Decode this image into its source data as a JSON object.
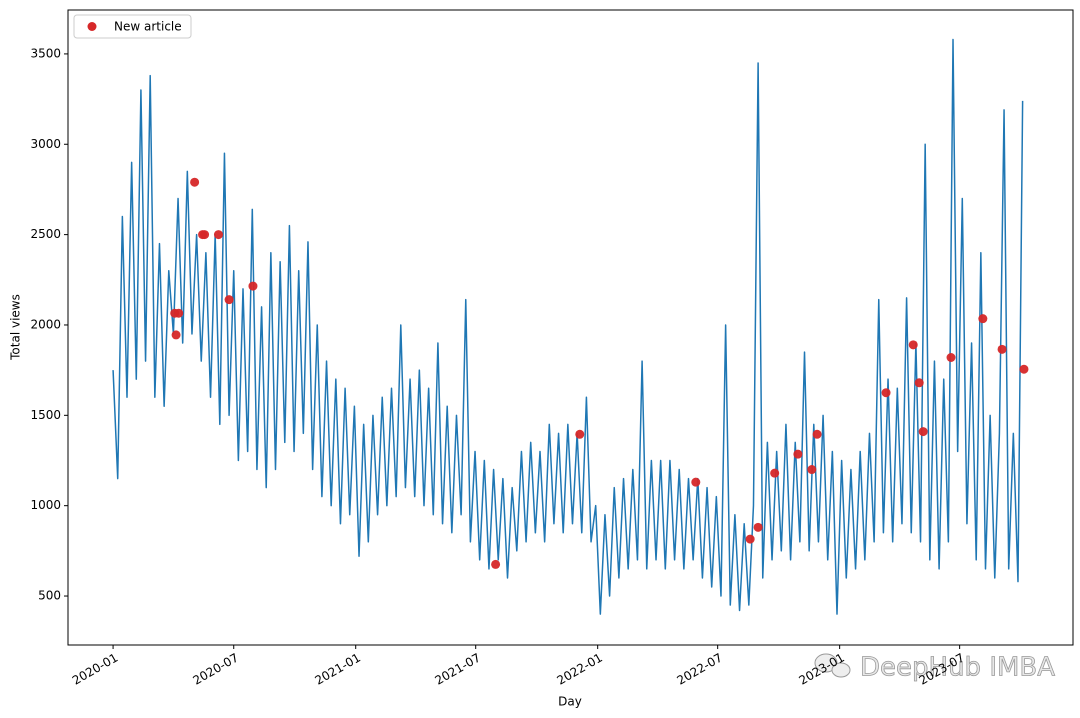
{
  "chart_data": {
    "type": "line",
    "xlabel": "Day",
    "ylabel": "Total views",
    "xlim": [
      "2019-10-25",
      "2023-12-19"
    ],
    "xticks": [
      "2020-01",
      "2020-07",
      "2021-01",
      "2021-07",
      "2022-01",
      "2022-07",
      "2023-01",
      "2023-07"
    ],
    "ylim": [
      229,
      3743
    ],
    "yticks": [
      500,
      1000,
      1500,
      2000,
      2500,
      3000,
      3500
    ],
    "legend": "upper left",
    "watermark": "DeepHub IMBA",
    "series": [
      {
        "type": "line",
        "color": "#1f77b4",
        "x": [
          "2020-01-01",
          "2020-01-08",
          "2020-01-15",
          "2020-01-22",
          "2020-01-29",
          "2020-02-05",
          "2020-02-12",
          "2020-02-19",
          "2020-02-26",
          "2020-03-04",
          "2020-03-11",
          "2020-03-18",
          "2020-03-25",
          "2020-04-01",
          "2020-04-08",
          "2020-04-15",
          "2020-04-22",
          "2020-04-29",
          "2020-05-06",
          "2020-05-13",
          "2020-05-20",
          "2020-05-27",
          "2020-06-03",
          "2020-06-10",
          "2020-06-17",
          "2020-06-24",
          "2020-07-01",
          "2020-07-08",
          "2020-07-15",
          "2020-07-22",
          "2020-07-29",
          "2020-08-05",
          "2020-08-12",
          "2020-08-19",
          "2020-08-26",
          "2020-09-02",
          "2020-09-09",
          "2020-09-16",
          "2020-09-23",
          "2020-09-30",
          "2020-10-07",
          "2020-10-14",
          "2020-10-21",
          "2020-10-28",
          "2020-11-04",
          "2020-11-11",
          "2020-11-18",
          "2020-11-25",
          "2020-12-02",
          "2020-12-09",
          "2020-12-16",
          "2020-12-23",
          "2020-12-30",
          "2021-01-06",
          "2021-01-13",
          "2021-01-20",
          "2021-01-27",
          "2021-02-03",
          "2021-02-10",
          "2021-02-17",
          "2021-02-24",
          "2021-03-03",
          "2021-03-10",
          "2021-03-17",
          "2021-03-24",
          "2021-03-31",
          "2021-04-07",
          "2021-04-14",
          "2021-04-21",
          "2021-04-28",
          "2021-05-05",
          "2021-05-12",
          "2021-05-19",
          "2021-05-26",
          "2021-06-02",
          "2021-06-09",
          "2021-06-16",
          "2021-06-23",
          "2021-06-30",
          "2021-07-07",
          "2021-07-14",
          "2021-07-21",
          "2021-07-28",
          "2021-08-04",
          "2021-08-11",
          "2021-08-18",
          "2021-08-25",
          "2021-09-01",
          "2021-09-08",
          "2021-09-15",
          "2021-09-22",
          "2021-09-29",
          "2021-10-06",
          "2021-10-13",
          "2021-10-20",
          "2021-10-27",
          "2021-11-03",
          "2021-11-10",
          "2021-11-17",
          "2021-11-24",
          "2021-12-01",
          "2021-12-08",
          "2021-12-15",
          "2021-12-22",
          "2021-12-29",
          "2022-01-05",
          "2022-01-12",
          "2022-01-19",
          "2022-01-26",
          "2022-02-02",
          "2022-02-09",
          "2022-02-16",
          "2022-02-23",
          "2022-03-02",
          "2022-03-09",
          "2022-03-16",
          "2022-03-23",
          "2022-03-30",
          "2022-04-06",
          "2022-04-13",
          "2022-04-20",
          "2022-04-27",
          "2022-05-04",
          "2022-05-11",
          "2022-05-18",
          "2022-05-25",
          "2022-06-01",
          "2022-06-08",
          "2022-06-15",
          "2022-06-22",
          "2022-06-29",
          "2022-07-06",
          "2022-07-13",
          "2022-07-20",
          "2022-07-27",
          "2022-08-03",
          "2022-08-10",
          "2022-08-17",
          "2022-08-24",
          "2022-08-31",
          "2022-09-07",
          "2022-09-14",
          "2022-09-21",
          "2022-09-28",
          "2022-10-05",
          "2022-10-12",
          "2022-10-19",
          "2022-10-26",
          "2022-11-02",
          "2022-11-09",
          "2022-11-16",
          "2022-11-23",
          "2022-11-30",
          "2022-12-07",
          "2022-12-14",
          "2022-12-21",
          "2022-12-28",
          "2023-01-04",
          "2023-01-11",
          "2023-01-18",
          "2023-01-25",
          "2023-02-01",
          "2023-02-08",
          "2023-02-15",
          "2023-02-22",
          "2023-03-01",
          "2023-03-08",
          "2023-03-15",
          "2023-03-22",
          "2023-03-29",
          "2023-04-05",
          "2023-04-12",
          "2023-04-19",
          "2023-04-26",
          "2023-05-03",
          "2023-05-10",
          "2023-05-17",
          "2023-05-24",
          "2023-05-31",
          "2023-06-07",
          "2023-06-14",
          "2023-06-21",
          "2023-06-28",
          "2023-07-05",
          "2023-07-12",
          "2023-07-19",
          "2023-07-26",
          "2023-08-02",
          "2023-08-09",
          "2023-08-16",
          "2023-08-23",
          "2023-08-30",
          "2023-09-06",
          "2023-09-13",
          "2023-09-20",
          "2023-09-27",
          "2023-10-04"
        ],
        "values": [
          1750,
          1150,
          2600,
          1600,
          2900,
          1700,
          3300,
          1800,
          3380,
          1600,
          2450,
          1550,
          2300,
          1950,
          2700,
          1900,
          2850,
          1950,
          2500,
          1800,
          2400,
          1600,
          2500,
          1450,
          2950,
          1500,
          2300,
          1250,
          2200,
          1300,
          2640,
          1200,
          2100,
          1100,
          2400,
          1200,
          2350,
          1350,
          2550,
          1300,
          2300,
          1400,
          2460,
          1200,
          2000,
          1050,
          1800,
          1000,
          1700,
          900,
          1650,
          950,
          1550,
          720,
          1450,
          800,
          1500,
          950,
          1600,
          1000,
          1650,
          1050,
          2000,
          1100,
          1700,
          1050,
          1750,
          1000,
          1650,
          950,
          1900,
          900,
          1550,
          850,
          1500,
          950,
          2140,
          800,
          1300,
          700,
          1250,
          650,
          1200,
          700,
          1150,
          600,
          1100,
          750,
          1300,
          800,
          1350,
          850,
          1300,
          800,
          1450,
          900,
          1400,
          850,
          1450,
          900,
          1400,
          850,
          1600,
          800,
          1000,
          400,
          950,
          500,
          1100,
          600,
          1150,
          650,
          1200,
          700,
          1800,
          650,
          1250,
          700,
          1250,
          650,
          1250,
          700,
          1200,
          650,
          1150,
          700,
          1150,
          600,
          1100,
          550,
          1050,
          500,
          2000,
          450,
          950,
          420,
          900,
          450,
          1000,
          3450,
          600,
          1350,
          700,
          1300,
          750,
          1450,
          700,
          1350,
          800,
          1850,
          750,
          1450,
          800,
          1500,
          700,
          1300,
          400,
          1250,
          600,
          1200,
          650,
          1300,
          700,
          1400,
          800,
          2140,
          850,
          1700,
          800,
          1650,
          900,
          2150,
          850,
          1900,
          800,
          3000,
          700,
          1800,
          650,
          1700,
          800,
          3580,
          1300,
          2700,
          900,
          1900,
          700,
          2400,
          650,
          1500,
          600,
          1400,
          3190,
          650,
          1400,
          580,
          3240
        ]
      },
      {
        "type": "scatter",
        "name": "New article",
        "color": "#d62728",
        "x": [
          "2020-04-03",
          "2020-04-09",
          "2020-04-05",
          "2020-05-03",
          "2020-05-15",
          "2020-05-18",
          "2020-06-08",
          "2020-06-24",
          "2020-07-30",
          "2021-07-31",
          "2021-12-05",
          "2022-05-29",
          "2022-08-19",
          "2022-08-31",
          "2022-09-25",
          "2022-10-30",
          "2022-11-20",
          "2022-11-28",
          "2023-03-12",
          "2023-04-22",
          "2023-05-01",
          "2023-05-07",
          "2023-06-18",
          "2023-08-05",
          "2023-09-03",
          "2023-10-06"
        ],
        "values": [
          2065,
          2065,
          1945,
          2790,
          2500,
          2500,
          2500,
          2140,
          2215,
          675,
          1395,
          1130,
          815,
          880,
          1180,
          1285,
          1200,
          1395,
          1625,
          1890,
          1680,
          1410,
          1820,
          2035,
          1865,
          1755
        ]
      }
    ]
  }
}
